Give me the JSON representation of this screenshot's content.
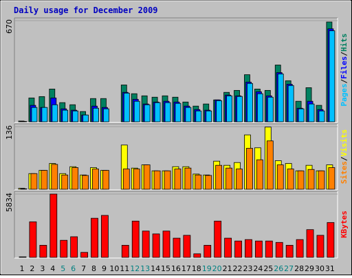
{
  "chart_data": [
    {
      "type": "bar",
      "title": "Daily usage for December 2009",
      "ylim": [
        0,
        670
      ],
      "yticks": [
        670
      ],
      "legend_separator": "/",
      "series": [
        {
          "name": "Hits",
          "color": "#008060",
          "values": [
            5,
            158,
            167,
            217,
            127,
            113,
            68,
            154,
            154,
            0,
            244,
            186,
            172,
            163,
            172,
            163,
            131,
            104,
            118,
            145,
            195,
            208,
            312,
            217,
            208,
            376,
            272,
            136,
            226,
            109,
            661
          ]
        },
        {
          "name": "Files",
          "color": "#0000ff",
          "values": [
            3,
            109,
            95,
            158,
            86,
            77,
            45,
            104,
            95,
            0,
            195,
            149,
            118,
            131,
            136,
            131,
            104,
            81,
            77,
            145,
            177,
            172,
            263,
            199,
            172,
            326,
            249,
            90,
            136,
            81,
            616
          ]
        },
        {
          "name": "Pages",
          "color": "#00c0ff",
          "values": [
            2,
            95,
            95,
            113,
            77,
            72,
            45,
            90,
            86,
            0,
            190,
            136,
            113,
            127,
            127,
            122,
            95,
            72,
            72,
            140,
            172,
            168,
            254,
            186,
            163,
            317,
            240,
            86,
            118,
            72,
            603
          ]
        }
      ]
    },
    {
      "type": "bar",
      "ylim": [
        0,
        136
      ],
      "yticks": [
        136
      ],
      "legend_separator": "/",
      "series": [
        {
          "name": "Visits",
          "color": "#ffff00",
          "values": [
            2,
            34,
            41,
            56,
            34,
            49,
            31,
            47,
            41,
            0,
            96,
            46,
            53,
            40,
            40,
            49,
            49,
            33,
            31,
            61,
            52,
            58,
            118,
            90,
            135,
            62,
            56,
            40,
            52,
            40,
            53
          ]
        },
        {
          "name": "Sites",
          "color": "#ff8000",
          "values": [
            1,
            34,
            41,
            54,
            31,
            47,
            30,
            44,
            41,
            0,
            44,
            44,
            53,
            40,
            40,
            44,
            46,
            31,
            30,
            52,
            46,
            44,
            89,
            64,
            105,
            53,
            44,
            40,
            43,
            40,
            47
          ]
        }
      ]
    },
    {
      "type": "bar",
      "ylim": [
        0,
        5834
      ],
      "yticks": [
        5834
      ],
      "categories": [
        "1",
        "2",
        "3",
        "4",
        "5",
        "6",
        "7",
        "8",
        "9",
        "10",
        "11",
        "12",
        "13",
        "14",
        "15",
        "16",
        "17",
        "18",
        "19",
        "20",
        "21",
        "22",
        "23",
        "24",
        "25",
        "26",
        "27",
        "28",
        "29",
        "30",
        "31"
      ],
      "category_colors": [
        "#000000",
        "#000000",
        "#000000",
        "#000000",
        "#008080",
        "#008080",
        "#000000",
        "#000000",
        "#000000",
        "#000000",
        "#000000",
        "#008080",
        "#008080",
        "#000000",
        "#000000",
        "#000000",
        "#000000",
        "#000000",
        "#008080",
        "#008080",
        "#000000",
        "#000000",
        "#000000",
        "#000000",
        "#000000",
        "#008080",
        "#008080",
        "#000000",
        "#000000",
        "#000000",
        "#000000"
      ],
      "series": [
        {
          "name": "KBytes",
          "color": "#ff0000",
          "values": [
            50,
            3277,
            1114,
            5834,
            1573,
            1901,
            459,
            3605,
            3867,
            0,
            1114,
            3343,
            2425,
            2163,
            2425,
            1770,
            2032,
            328,
            1114,
            3343,
            1770,
            1508,
            1639,
            1508,
            1508,
            1377,
            1114,
            1639,
            2556,
            2032,
            3212
          ]
        }
      ]
    }
  ]
}
